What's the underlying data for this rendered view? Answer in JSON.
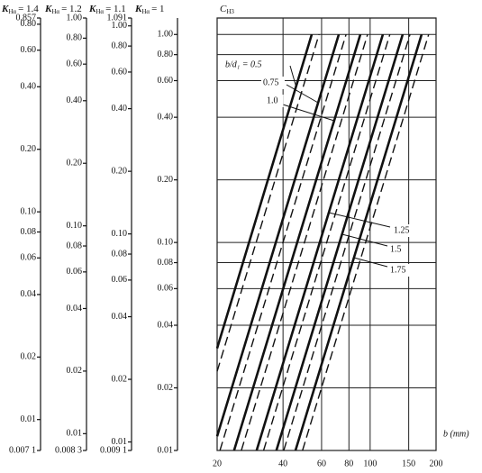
{
  "chart_data": {
    "type": "line",
    "y_label": {
      "symbol": "C",
      "subscript": "H3"
    },
    "x_label": "b (mm)",
    "log_x": true,
    "log_y": true,
    "grid": true,
    "xlim": [
      20,
      200
    ],
    "xticks": [
      20,
      40,
      60,
      80,
      100,
      150,
      200
    ],
    "ylim": [
      0.01,
      1.2
    ],
    "yticks": [
      0.01,
      0.02,
      0.04,
      0.06,
      0.08,
      0.1,
      0.2,
      0.4,
      0.6,
      0.8,
      1.0
    ],
    "color": "#111111",
    "series": [
      {
        "style": "solid",
        "x": [
          20,
          54.1
        ],
        "values": [
          0.031,
          1.0
        ]
      },
      {
        "style": "dashed",
        "x": [
          20,
          58.4
        ],
        "values": [
          0.024,
          1.0
        ]
      },
      {
        "style": "solid",
        "x": [
          20,
          71.9
        ],
        "values": [
          0.0117,
          1.0
        ]
      },
      {
        "style": "dashed",
        "x": [
          20.6,
          77.6
        ],
        "values": [
          0.01,
          1.0
        ]
      },
      {
        "style": "solid",
        "x": [
          23.9,
          90.2
        ],
        "values": [
          0.01,
          1.0
        ]
      },
      {
        "style": "dashed",
        "x": [
          25.8,
          97.3
        ],
        "values": [
          0.01,
          1.0
        ]
      },
      {
        "style": "solid",
        "x": [
          30.3,
          114.3
        ],
        "values": [
          0.01,
          1.0
        ]
      },
      {
        "style": "dashed",
        "x": [
          32.6,
          123
        ],
        "values": [
          0.01,
          1.0
        ]
      },
      {
        "style": "solid",
        "x": [
          37.3,
          140.8
        ],
        "values": [
          0.01,
          1.0
        ]
      },
      {
        "style": "dashed",
        "x": [
          40.3,
          152
        ],
        "values": [
          0.01,
          1.0
        ]
      },
      {
        "style": "solid",
        "x": [
          45.6,
          171.8
        ],
        "values": [
          0.01,
          1.0
        ]
      },
      {
        "style": "dashed",
        "x": [
          49.1,
          185
        ],
        "values": [
          0.01,
          1.0
        ]
      }
    ],
    "annotations": [
      "b/d₁ = 0.5",
      "0.75",
      "1.0",
      "1.25",
      "1.5",
      "1.75"
    ],
    "scales": [
      {
        "symbol": "K",
        "subscript": "Hα",
        "value": "= 1.4",
        "ylim": [
          0.0071,
          0.857
        ],
        "ticks": [
          0.857,
          {
            "value": 0.8,
            "label": "0.80"
          },
          {
            "value": 0.6,
            "label": "0.60"
          },
          {
            "value": 0.4,
            "label": "0.40"
          },
          {
            "value": 0.2,
            "label": "0.20"
          },
          {
            "value": 0.1,
            "label": "0.10"
          },
          0.08,
          0.06,
          0.04,
          0.02,
          0.01,
          {
            "value": 0.0071,
            "label": "0.007 1"
          }
        ]
      },
      {
        "symbol": "K",
        "subscript": "Hα",
        "value": "= 1.2",
        "ylim": [
          0.0083,
          1.0
        ],
        "ticks": [
          {
            "value": 1.0,
            "label": "1.00"
          },
          {
            "value": 0.8,
            "label": "0.80"
          },
          {
            "value": 0.6,
            "label": "0.60"
          },
          {
            "value": 0.4,
            "label": "0.40"
          },
          {
            "value": 0.2,
            "label": "0.20"
          },
          {
            "value": 0.1,
            "label": "0.10"
          },
          0.08,
          0.06,
          0.04,
          0.02,
          0.01,
          {
            "value": 0.0083,
            "label": "0.008 3"
          }
        ]
      },
      {
        "symbol": "K",
        "subscript": "Hα",
        "value": "= 1.1",
        "ylim": [
          0.0091,
          1.091
        ],
        "ticks": [
          1.091,
          {
            "value": 1.0,
            "label": "1.00"
          },
          {
            "value": 0.8,
            "label": "0.80"
          },
          {
            "value": 0.6,
            "label": "0.60"
          },
          {
            "value": 0.4,
            "label": "0.40"
          },
          {
            "value": 0.2,
            "label": "0.20"
          },
          {
            "value": 0.1,
            "label": "0.10"
          },
          0.08,
          0.06,
          0.04,
          0.02,
          0.01,
          {
            "value": 0.0091,
            "label": "0.009 1"
          }
        ]
      },
      {
        "symbol": "K",
        "subscript": "Hα",
        "value": "= 1",
        "ylim": [
          0.01,
          1.2
        ],
        "ticks": [
          {
            "value": 1.0,
            "label": "1.00"
          },
          {
            "value": 0.8,
            "label": "0.80"
          },
          {
            "value": 0.6,
            "label": "0.60"
          },
          {
            "value": 0.4,
            "label": "0.40"
          },
          {
            "value": 0.2,
            "label": "0.20"
          },
          {
            "value": 0.1,
            "label": "0.10"
          },
          0.08,
          0.06,
          0.04,
          0.02,
          0.01
        ]
      }
    ]
  }
}
